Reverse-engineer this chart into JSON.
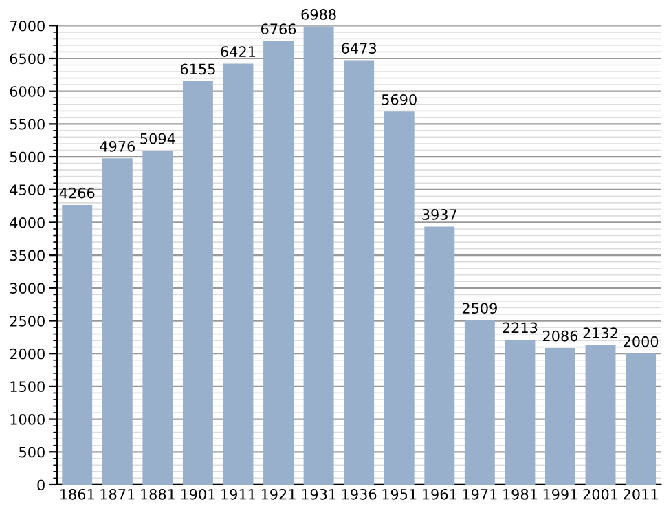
{
  "chart_data": {
    "type": "bar",
    "categories": [
      "1861",
      "1871",
      "1881",
      "1901",
      "1911",
      "1921",
      "1931",
      "1936",
      "1951",
      "1961",
      "1971",
      "1981",
      "1991",
      "2001",
      "2011"
    ],
    "values": [
      4266,
      4976,
      5094,
      6155,
      6421,
      6766,
      6988,
      6473,
      5690,
      3937,
      2509,
      2213,
      2086,
      2132,
      2000
    ],
    "color": "#98b0cb",
    "ylim": [
      0,
      7000
    ],
    "yticks": [
      0,
      500,
      1000,
      1500,
      2000,
      2500,
      3000,
      3500,
      4000,
      4500,
      5000,
      5500,
      6000,
      6500,
      7000
    ],
    "grid": "y",
    "data_labels": true
  }
}
